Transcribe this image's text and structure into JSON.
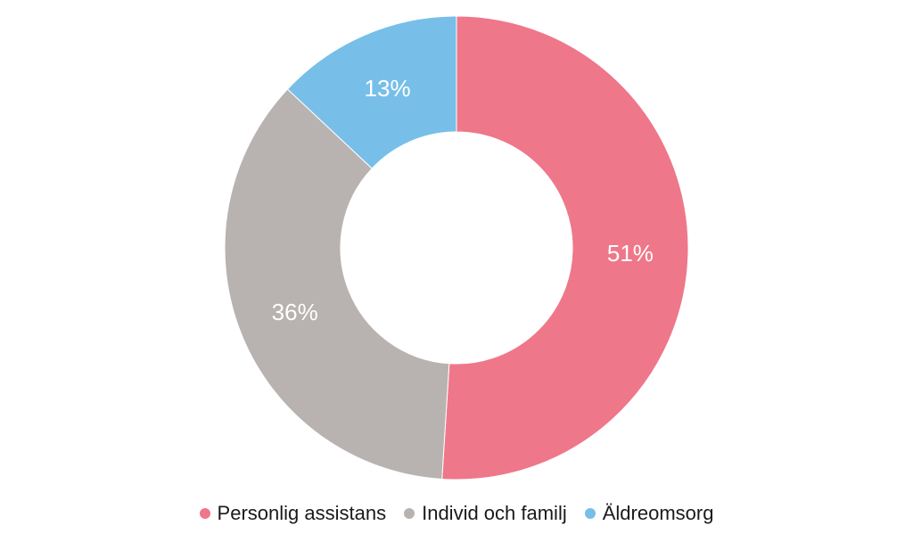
{
  "chart_data": {
    "type": "pie",
    "variant": "donut",
    "categories": [
      "Personlig assistans",
      "Individ och familj",
      "Äldreomsorg"
    ],
    "values": [
      51,
      36,
      13
    ],
    "value_labels": [
      "51%",
      "36%",
      "13%"
    ],
    "colors": [
      "#ef778a",
      "#b8b3b0",
      "#77bfe9"
    ],
    "title": "",
    "legend": {
      "position": "bottom",
      "items": [
        {
          "label": "Personlig assistans",
          "color": "#ef778a"
        },
        {
          "label": "Individ och familj",
          "color": "#b8b3b0"
        },
        {
          "label": "Äldreomsorg",
          "color": "#77bfe9"
        }
      ]
    }
  }
}
